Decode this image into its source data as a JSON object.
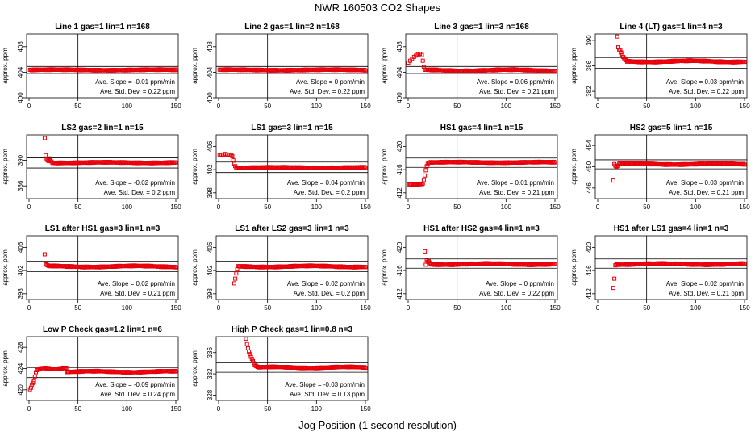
{
  "page": {
    "title": "NWR  160503  CO2 Shapes",
    "xlabel": "Jog Position (1 second resolution)",
    "ylabel": "approx. ppm",
    "marker_color": "#e8000b"
  },
  "chart_data": [
    {
      "type": "scatter",
      "title": "Line 1 gas=1 lin=1 n=168",
      "xlim": [
        0,
        150
      ],
      "xticks": [
        0,
        50,
        100,
        150
      ],
      "ylim": [
        400,
        410
      ],
      "yticks": [
        400,
        404,
        408
      ],
      "hlines": [
        404.9,
        403.8
      ],
      "vline": 50,
      "stats": [
        "Ave. Slope =  -0.01  ppm/min",
        "Ave. Std. Dev. =  0.22  ppm"
      ],
      "segments": [
        [
          1,
          150,
          404.3,
          404.4
        ]
      ],
      "points": []
    },
    {
      "type": "scatter",
      "title": "Line 2 gas=1 lin=2 n=168",
      "xlim": [
        0,
        150
      ],
      "xticks": [
        0,
        50,
        100,
        150
      ],
      "ylim": [
        400,
        410
      ],
      "yticks": [
        400,
        404,
        408
      ],
      "hlines": [
        404.9,
        403.8
      ],
      "vline": 50,
      "stats": [
        "Ave. Slope =  0  ppm/min",
        "Ave. Std. Dev. =  0.22  ppm"
      ],
      "segments": [
        [
          1,
          150,
          404.3,
          404.4
        ]
      ],
      "points": []
    },
    {
      "type": "scatter",
      "title": "Line 3 gas=1 lin=3 n=168",
      "xlim": [
        0,
        150
      ],
      "xticks": [
        0,
        50,
        100,
        150
      ],
      "ylim": [
        400,
        410
      ],
      "yticks": [
        400,
        404,
        408
      ],
      "hlines": [
        404.9,
        403.8
      ],
      "vline": 50,
      "stats": [
        "Ave. Slope =  0.06  ppm/min",
        "Ave. Std. Dev. =  0.21  ppm"
      ],
      "segments": [
        [
          18,
          150,
          404.2,
          404.4
        ]
      ],
      "points": [
        [
          0,
          405.5
        ],
        [
          2,
          405.8
        ],
        [
          4,
          406.1
        ],
        [
          6,
          406.4
        ],
        [
          8,
          406.6
        ],
        [
          10,
          406.8
        ],
        [
          12,
          406.9
        ],
        [
          14,
          406.7
        ],
        [
          15,
          405.8
        ],
        [
          16,
          404.8
        ],
        [
          17,
          404.4
        ]
      ]
    },
    {
      "type": "scatter",
      "title": "Line 4 (LT) gas=1 lin=4 n=3",
      "xlim": [
        0,
        150
      ],
      "xticks": [
        0,
        50,
        100,
        150
      ],
      "ylim": [
        381,
        391
      ],
      "yticks": [
        382,
        386,
        390
      ],
      "hlines": [
        387.3,
        385.6
      ],
      "vline": 50,
      "stats": [
        "Ave. Slope =  0.03  ppm/min",
        "Ave. Std. Dev. =  0.22  ppm"
      ],
      "segments": [
        [
          30,
          150,
          386.6,
          386.8
        ]
      ],
      "points": [
        [
          20,
          390.6
        ],
        [
          21,
          388.9
        ],
        [
          22,
          388.4
        ],
        [
          23,
          388.5
        ],
        [
          24,
          388.1
        ],
        [
          25,
          387.7
        ],
        [
          26,
          387.4
        ],
        [
          27,
          387.2
        ],
        [
          28,
          387.0
        ],
        [
          29,
          386.9
        ]
      ]
    },
    {
      "type": "scatter",
      "title": "LS2 gas=2 lin=1 n=15",
      "xlim": [
        0,
        150
      ],
      "xticks": [
        0,
        50,
        100,
        150
      ],
      "ylim": [
        384,
        394
      ],
      "yticks": [
        386,
        390
      ],
      "hlines": [
        390.4,
        388.8
      ],
      "vline": 50,
      "stats": [
        "Ave. Slope =  -0.02  ppm/min",
        "Ave. Std. Dev. =  0.2  ppm"
      ],
      "segments": [
        [
          24,
          150,
          389.6,
          389.7
        ]
      ],
      "points": [
        [
          16,
          393.5
        ],
        [
          17,
          390.8
        ],
        [
          18,
          390.2
        ],
        [
          19,
          390.0
        ],
        [
          20,
          389.9
        ],
        [
          21,
          390.3
        ],
        [
          22,
          390.0
        ],
        [
          23,
          389.8
        ]
      ]
    },
    {
      "type": "scatter",
      "title": "LS1 gas=3 lin=1 n=15",
      "xlim": [
        0,
        150
      ],
      "xticks": [
        0,
        50,
        100,
        150
      ],
      "ylim": [
        397,
        408
      ],
      "yticks": [
        398,
        402,
        406
      ],
      "hlines": [
        403.3,
        401.5
      ],
      "vline": 50,
      "stats": [
        "Ave. Slope =  0.04  ppm/min",
        "Ave. Std. Dev. =  0.2  ppm"
      ],
      "segments": [
        [
          18,
          150,
          402.3,
          402.4
        ]
      ],
      "points": [
        [
          1,
          404.5
        ],
        [
          3,
          404.6
        ],
        [
          5,
          404.6
        ],
        [
          7,
          404.7
        ],
        [
          9,
          404.6
        ],
        [
          11,
          404.6
        ],
        [
          13,
          404.5
        ],
        [
          14,
          404.3
        ],
        [
          15,
          403.6
        ],
        [
          16,
          403.0
        ],
        [
          17,
          402.6
        ]
      ]
    },
    {
      "type": "scatter",
      "title": "HS1 gas=4 lin=1 n=15",
      "xlim": [
        0,
        150
      ],
      "xticks": [
        0,
        50,
        100,
        150
      ],
      "ylim": [
        411,
        422
      ],
      "yticks": [
        412,
        416,
        420
      ],
      "hlines": [
        418.0,
        416.4
      ],
      "vline": 50,
      "stats": [
        "Ave. Slope =  0.01  ppm/min",
        "Ave. Std. Dev. =  0.21  ppm"
      ],
      "segments": [
        [
          1,
          14,
          413.4,
          413.5
        ],
        [
          22,
          150,
          417.2,
          417.3
        ]
      ],
      "points": [
        [
          15,
          413.6
        ],
        [
          16,
          414.2
        ],
        [
          17,
          415.0
        ],
        [
          18,
          415.9
        ],
        [
          19,
          416.6
        ],
        [
          20,
          417.0
        ],
        [
          21,
          417.2
        ]
      ]
    },
    {
      "type": "scatter",
      "title": "HS2 gas=5 lin=1 n=15",
      "xlim": [
        0,
        150
      ],
      "xticks": [
        0,
        50,
        100,
        150
      ],
      "ylim": [
        444,
        456
      ],
      "yticks": [
        446,
        450,
        454
      ],
      "hlines": [
        451.3,
        449.6
      ],
      "vline": 50,
      "stats": [
        "Ave. Slope =  0.03  ppm/min",
        "Ave. Std. Dev. =  0.21  ppm"
      ],
      "segments": [
        [
          22,
          150,
          450.4,
          450.6
        ]
      ],
      "points": [
        [
          16,
          447.4
        ],
        [
          17,
          450.5
        ],
        [
          18,
          450.2
        ],
        [
          19,
          450.0
        ],
        [
          20,
          450.1
        ],
        [
          21,
          450.2
        ]
      ]
    },
    {
      "type": "scatter",
      "title": "LS1 after HS1 gas=3 lin=1 n=3",
      "xlim": [
        0,
        150
      ],
      "xticks": [
        0,
        50,
        100,
        150
      ],
      "ylim": [
        397,
        408
      ],
      "yticks": [
        398,
        402,
        406
      ],
      "hlines": [
        403.6,
        401.8
      ],
      "vline": 50,
      "stats": [
        "Ave. Slope =  0.02  ppm/min",
        "Ave. Std. Dev. =  0.21  ppm"
      ],
      "segments": [
        [
          20,
          150,
          402.6,
          402.8
        ]
      ],
      "points": [
        [
          16,
          404.8
        ],
        [
          17,
          403.1
        ],
        [
          18,
          403.0
        ],
        [
          19,
          402.9
        ]
      ]
    },
    {
      "type": "scatter",
      "title": "LS1 after LS2 gas=3 lin=1 n=3",
      "xlim": [
        0,
        150
      ],
      "xticks": [
        0,
        50,
        100,
        150
      ],
      "ylim": [
        397,
        408
      ],
      "yticks": [
        398,
        402,
        406
      ],
      "hlines": [
        403.6,
        401.8
      ],
      "vline": 50,
      "stats": [
        "Ave. Slope =  0.02  ppm/min",
        "Ave. Std. Dev. =  0.2  ppm"
      ],
      "segments": [
        [
          20,
          150,
          402.6,
          402.8
        ]
      ],
      "points": [
        [
          16,
          399.8
        ],
        [
          17,
          400.6
        ],
        [
          18,
          401.5
        ],
        [
          19,
          402.2
        ]
      ]
    },
    {
      "type": "scatter",
      "title": "HS1 after HS2 gas=4 lin=1 n=3",
      "xlim": [
        0,
        150
      ],
      "xticks": [
        0,
        50,
        100,
        150
      ],
      "ylim": [
        411,
        422
      ],
      "yticks": [
        412,
        416,
        420
      ],
      "hlines": [
        418.0,
        416.4
      ],
      "vline": 50,
      "stats": [
        "Ave. Slope =  0  ppm/min",
        "Ave. Std. Dev. =  0.22  ppm"
      ],
      "segments": [
        [
          24,
          150,
          417.0,
          417.2
        ]
      ],
      "points": [
        [
          17,
          419.3
        ],
        [
          18,
          417.0
        ],
        [
          19,
          417.8
        ],
        [
          20,
          417.5
        ],
        [
          21,
          417.6
        ],
        [
          22,
          417.3
        ],
        [
          23,
          417.2
        ]
      ]
    },
    {
      "type": "scatter",
      "title": "HS1 after LS1 gas=4 lin=1 n=3",
      "xlim": [
        0,
        150
      ],
      "xticks": [
        0,
        50,
        100,
        150
      ],
      "ylim": [
        411,
        422
      ],
      "yticks": [
        412,
        416,
        420
      ],
      "hlines": [
        418.0,
        416.4
      ],
      "vline": 50,
      "stats": [
        "Ave. Slope =  0.02  ppm/min",
        "Ave. Std. Dev. =  0.21  ppm"
      ],
      "segments": [
        [
          19,
          150,
          417.0,
          417.2
        ]
      ],
      "points": [
        [
          16,
          413.0
        ],
        [
          17,
          414.6
        ],
        [
          18,
          416.9
        ]
      ]
    },
    {
      "type": "scatter",
      "title": "Low P Check gas=1.2 lin=1 n=6",
      "xlim": [
        0,
        150
      ],
      "xticks": [
        0,
        50,
        100,
        150
      ],
      "ylim": [
        418,
        430
      ],
      "yticks": [
        420,
        424,
        428
      ],
      "hlines": [
        424.2,
        422.3
      ],
      "vline": 50,
      "stats": [
        "Ave. Slope =  -0.09  ppm/min",
        "Ave. Std. Dev. =  0.24  ppm"
      ],
      "segments": [
        [
          9,
          38,
          423.9,
          424.1
        ],
        [
          39,
          150,
          423.3,
          423.5
        ]
      ],
      "points": [
        [
          1,
          420.1
        ],
        [
          2,
          420.4
        ],
        [
          3,
          421.0
        ],
        [
          4,
          421.3
        ],
        [
          5,
          421.6
        ],
        [
          6,
          422.5
        ],
        [
          7,
          423.3
        ],
        [
          8,
          423.7
        ]
      ]
    },
    {
      "type": "scatter",
      "title": "High P Check gas=1 lin=0.8 n=3",
      "xlim": [
        0,
        150
      ],
      "xticks": [
        0,
        50,
        100,
        150
      ],
      "ylim": [
        327,
        339
      ],
      "yticks": [
        328,
        332,
        336
      ],
      "hlines": [
        334.2,
        332.3
      ],
      "vline": 50,
      "stats": [
        "Ave. Slope =  -0.03  ppm/min",
        "Ave. Std. Dev. =  0.13  ppm"
      ],
      "segments": [
        [
          42,
          150,
          333.1,
          333.3
        ]
      ],
      "points": [
        [
          28,
          338.6
        ],
        [
          29,
          337.6
        ],
        [
          30,
          336.8
        ],
        [
          31,
          336.2
        ],
        [
          32,
          335.7
        ],
        [
          33,
          335.2
        ],
        [
          34,
          334.8
        ],
        [
          35,
          334.4
        ],
        [
          36,
          334.0
        ],
        [
          37,
          333.7
        ],
        [
          38,
          333.5
        ],
        [
          39,
          333.4
        ],
        [
          40,
          333.3
        ],
        [
          41,
          333.2
        ]
      ]
    }
  ]
}
